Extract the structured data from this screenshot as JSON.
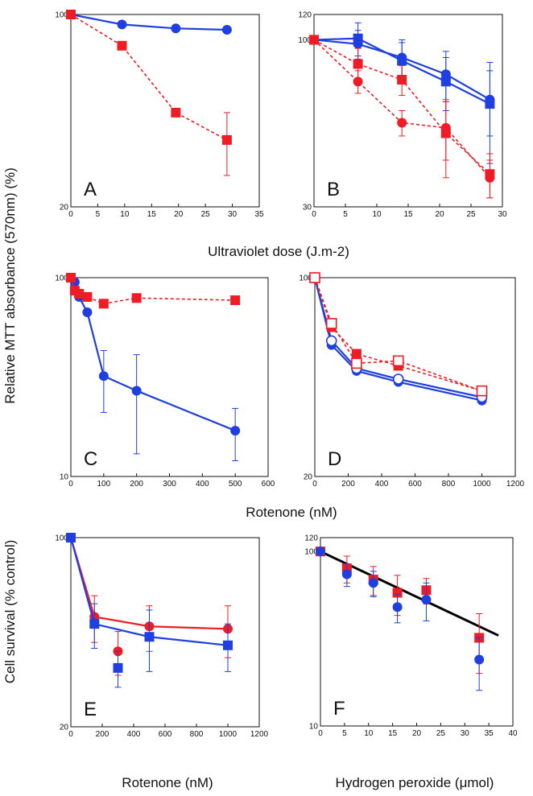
{
  "figure": {
    "y_label_top": "Relative MTT absorbance (570nm) (%)",
    "y_label_bottom": "Cell survival (% control)",
    "x_label_uv": "Ultraviolet dose (J.m-2)",
    "x_label_rot_mid": "Rotenone (nM)",
    "x_label_rot_bottom": "Rotenone (nM)",
    "x_label_h2o2": "Hydrogen peroxide (μmol)",
    "colors": {
      "red": "#ee1c24",
      "blue": "#1f3fe0",
      "black": "#000000"
    }
  },
  "chart_data": [
    {
      "id": "A",
      "type": "line",
      "panel_label": "A",
      "xlim": [
        0,
        35
      ],
      "ylim": [
        20,
        100
      ],
      "yscale": "log",
      "xticks": [
        0,
        5,
        10,
        15,
        20,
        25,
        30,
        35
      ],
      "yticks": [
        20,
        100
      ],
      "ytick_labels": [
        "20",
        "100"
      ],
      "series": [
        {
          "color": "blue",
          "marker": "circle",
          "dash": false,
          "x": [
            0,
            9.5,
            19.5,
            29
          ],
          "y": [
            100,
            92,
            89,
            88
          ]
        },
        {
          "color": "red",
          "marker": "square",
          "dash": true,
          "x": [
            0,
            9.5,
            19.5,
            29
          ],
          "y": [
            100,
            77,
            44,
            35
          ],
          "err": [
            0,
            0,
            0,
            9
          ]
        }
      ]
    },
    {
      "id": "B",
      "type": "line",
      "panel_label": "B",
      "xlim": [
        0,
        30
      ],
      "ylim": [
        30,
        120
      ],
      "yscale": "log",
      "xticks": [
        0,
        5,
        10,
        15,
        20,
        25,
        30
      ],
      "yticks": [
        30,
        100,
        120
      ],
      "ytick_labels": [
        "30",
        "100",
        "120"
      ],
      "series": [
        {
          "color": "blue",
          "marker": "circle",
          "dash": false,
          "x": [
            0,
            7,
            14,
            21,
            28
          ],
          "y": [
            100,
            97,
            88,
            78,
            65
          ],
          "err": [
            0,
            10,
            12,
            14,
            15
          ]
        },
        {
          "color": "blue",
          "marker": "square",
          "dash": false,
          "x": [
            0,
            7,
            14,
            21,
            28
          ],
          "y": [
            100,
            101,
            86,
            74,
            63
          ],
          "err": [
            0,
            12,
            12,
            14,
            22
          ]
        },
        {
          "color": "red",
          "marker": "square",
          "dash": true,
          "x": [
            0,
            7,
            14,
            21,
            28
          ],
          "y": [
            100,
            84,
            75,
            51,
            38
          ],
          "err": [
            0,
            10,
            8,
            14,
            6
          ]
        },
        {
          "color": "red",
          "marker": "circle",
          "dash": true,
          "x": [
            0,
            7,
            14,
            21,
            28
          ],
          "y": [
            100,
            74,
            55,
            53,
            37
          ],
          "err": [
            0,
            6,
            5,
            11,
            5
          ]
        }
      ]
    },
    {
      "id": "C",
      "type": "line",
      "panel_label": "C",
      "xlim": [
        0,
        600
      ],
      "ylim": [
        10,
        100
      ],
      "yscale": "log",
      "xticks": [
        0,
        100,
        200,
        300,
        400,
        500,
        600
      ],
      "yticks": [
        10,
        100
      ],
      "ytick_labels": [
        "10",
        "100"
      ],
      "series": [
        {
          "color": "blue",
          "marker": "circle",
          "dash": false,
          "x": [
            0,
            12,
            25,
            50,
            100,
            200,
            500
          ],
          "y": [
            100,
            95,
            80,
            67,
            32,
            27,
            17
          ],
          "err": [
            0,
            0,
            0,
            0,
            11,
            14,
            5
          ]
        },
        {
          "color": "red",
          "marker": "square",
          "dash": true,
          "x": [
            0,
            12,
            25,
            50,
            100,
            200,
            500
          ],
          "y": [
            100,
            86,
            83,
            80,
            74,
            79,
            77
          ]
        }
      ]
    },
    {
      "id": "D",
      "type": "line",
      "panel_label": "D",
      "xlim": [
        0,
        1200
      ],
      "ylim": [
        20,
        100
      ],
      "yscale": "log",
      "xticks": [
        0,
        200,
        400,
        600,
        800,
        1000,
        1200
      ],
      "yticks": [
        20,
        100
      ],
      "ytick_labels": [
        "20",
        "100"
      ],
      "series": [
        {
          "color": "blue",
          "marker": "circle",
          "dash": false,
          "x": [
            0,
            100,
            250,
            500,
            1000
          ],
          "y": [
            100,
            58,
            47,
            43,
            37
          ]
        },
        {
          "color": "blue",
          "marker": "open-circle",
          "dash": false,
          "x": [
            0,
            100,
            250,
            500,
            1000
          ],
          "y": [
            100,
            60,
            48,
            44,
            38
          ]
        },
        {
          "color": "red",
          "marker": "square",
          "dash": true,
          "x": [
            0,
            100,
            250,
            500,
            1000
          ],
          "y": [
            100,
            67,
            54,
            49,
            40
          ]
        },
        {
          "color": "red",
          "marker": "open-square",
          "dash": true,
          "x": [
            0,
            100,
            250,
            500,
            1000
          ],
          "y": [
            100,
            69,
            50,
            51,
            40
          ]
        }
      ]
    },
    {
      "id": "E",
      "type": "line",
      "panel_label": "E",
      "xlim": [
        0,
        1200
      ],
      "ylim": [
        20,
        100
      ],
      "yscale": "log",
      "xticks": [
        0,
        200,
        400,
        600,
        800,
        1000,
        1200
      ],
      "yticks": [
        20,
        100
      ],
      "ytick_labels": [
        "20",
        "100"
      ],
      "series": [
        {
          "color": "red",
          "marker": "circle",
          "dash": false,
          "x": [
            0,
            150,
            500,
            1000
          ],
          "y": [
            100,
            51,
            47,
            46
          ],
          "err": [
            0,
            10,
            9,
            10
          ]
        },
        {
          "color": "blue",
          "marker": "square",
          "dash": false,
          "x": [
            0,
            150,
            500,
            1000
          ],
          "y": [
            100,
            48,
            43,
            40
          ],
          "err": [
            0,
            9,
            11,
            8
          ]
        },
        {
          "color": "red",
          "marker": "circle",
          "dash": false,
          "nolink": true,
          "x": [
            300
          ],
          "y": [
            38
          ],
          "err": [
            7
          ]
        },
        {
          "color": "blue",
          "marker": "square",
          "dash": false,
          "nolink": true,
          "x": [
            300
          ],
          "y": [
            33
          ],
          "err": [
            5
          ]
        }
      ]
    },
    {
      "id": "F",
      "type": "scatter",
      "panel_label": "F",
      "xlim": [
        0,
        40
      ],
      "ylim": [
        10,
        120
      ],
      "yscale": "log",
      "xticks": [
        0,
        5,
        10,
        15,
        20,
        25,
        30,
        35,
        40
      ],
      "yticks": [
        10,
        100,
        120
      ],
      "ytick_labels": [
        "10",
        "100",
        "120"
      ],
      "series": [
        {
          "color": "red",
          "marker": "square",
          "dash": false,
          "nolink": true,
          "x": [
            0,
            5.5,
            11,
            16,
            22,
            33
          ],
          "y": [
            100,
            80,
            69,
            58,
            60,
            32
          ],
          "err": [
            0,
            14,
            13,
            15,
            10,
            12
          ]
        },
        {
          "color": "blue",
          "marker": "circle",
          "dash": false,
          "nolink": true,
          "x": [
            0,
            5.5,
            11,
            16,
            22,
            33
          ],
          "y": [
            100,
            74,
            66,
            48,
            53,
            24
          ],
          "err": [
            0,
            11,
            11,
            9,
            13,
            8
          ]
        }
      ],
      "fit_line": {
        "color": "black",
        "x": [
          0,
          37
        ],
        "y": [
          100,
          33
        ]
      }
    }
  ]
}
